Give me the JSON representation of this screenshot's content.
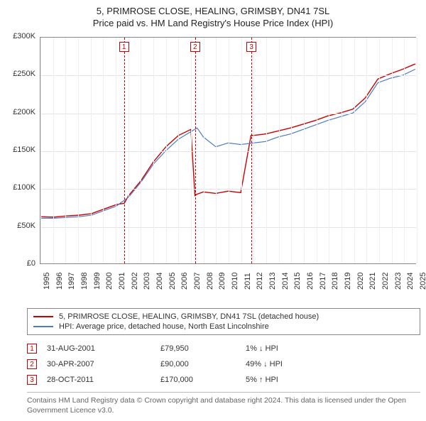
{
  "title_line1": "5, PRIMROSE CLOSE, HEALING, GRIMSBY, DN41 7SL",
  "title_line2": "Price paid vs. HM Land Registry's House Price Index (HPI)",
  "chart": {
    "type": "line",
    "background_color": "#ffffff",
    "grid_color": "#e4e4e4",
    "axis_color": "#888888",
    "label_fontsize": 11,
    "label_color": "#333333",
    "x_year_start": 1995,
    "x_year_end": 2025,
    "ylim": [
      0,
      300000
    ],
    "ytick_step": 50000,
    "y_prefix": "£",
    "y_suffix_k": "K",
    "years": [
      1995,
      1996,
      1997,
      1998,
      1999,
      2000,
      2001,
      2002,
      2003,
      2004,
      2005,
      2006,
      2007,
      2008,
      2009,
      2010,
      2011,
      2012,
      2013,
      2014,
      2015,
      2016,
      2017,
      2018,
      2019,
      2020,
      2021,
      2022,
      2023,
      2024,
      2025
    ],
    "series": [
      {
        "name": "price_paid",
        "label": "5, PRIMROSE CLOSE, HEALING, GRIMSBY, DN41 7SL (detached house)",
        "color": "#cc0000",
        "line_width": 1.4,
        "data": [
          [
            1995,
            62000
          ],
          [
            1996,
            61500
          ],
          [
            1997,
            63000
          ],
          [
            1998,
            64000
          ],
          [
            1999,
            66000
          ],
          [
            2000,
            72000
          ],
          [
            2001,
            78000
          ],
          [
            2001.66,
            79950
          ],
          [
            2002,
            90000
          ],
          [
            2003,
            110000
          ],
          [
            2004,
            135000
          ],
          [
            2005,
            155000
          ],
          [
            2006,
            170000
          ],
          [
            2007,
            178000
          ],
          [
            2007.33,
            90000
          ],
          [
            2007.5,
            92000
          ],
          [
            2008,
            95000
          ],
          [
            2009,
            93000
          ],
          [
            2010,
            96000
          ],
          [
            2011,
            94000
          ],
          [
            2011.82,
            170000
          ],
          [
            2012,
            170000
          ],
          [
            2013,
            172000
          ],
          [
            2014,
            176000
          ],
          [
            2015,
            180000
          ],
          [
            2016,
            185000
          ],
          [
            2017,
            190000
          ],
          [
            2018,
            196000
          ],
          [
            2019,
            200000
          ],
          [
            2020,
            205000
          ],
          [
            2021,
            220000
          ],
          [
            2022,
            245000
          ],
          [
            2023,
            252000
          ],
          [
            2024,
            258000
          ],
          [
            2025,
            265000
          ]
        ]
      },
      {
        "name": "hpi",
        "label": "HPI: Average price, detached house, North East Lincolnshire",
        "color": "#4a7bc4",
        "line_width": 1.2,
        "data": [
          [
            1995,
            60000
          ],
          [
            1996,
            60000
          ],
          [
            1997,
            61000
          ],
          [
            1998,
            62000
          ],
          [
            1999,
            64000
          ],
          [
            2000,
            70000
          ],
          [
            2001,
            76000
          ],
          [
            2002,
            88000
          ],
          [
            2003,
            108000
          ],
          [
            2004,
            132000
          ],
          [
            2005,
            150000
          ],
          [
            2006,
            165000
          ],
          [
            2007,
            175000
          ],
          [
            2007.5,
            180000
          ],
          [
            2008,
            168000
          ],
          [
            2009,
            155000
          ],
          [
            2010,
            160000
          ],
          [
            2011,
            158000
          ],
          [
            2012,
            160000
          ],
          [
            2013,
            162000
          ],
          [
            2014,
            168000
          ],
          [
            2015,
            172000
          ],
          [
            2016,
            178000
          ],
          [
            2017,
            184000
          ],
          [
            2018,
            190000
          ],
          [
            2019,
            195000
          ],
          [
            2020,
            200000
          ],
          [
            2021,
            215000
          ],
          [
            2022,
            240000
          ],
          [
            2023,
            246000
          ],
          [
            2024,
            250000
          ],
          [
            2025,
            258000
          ]
        ]
      }
    ],
    "markers": [
      {
        "id": "1",
        "year": 2001.66
      },
      {
        "id": "2",
        "year": 2007.33
      },
      {
        "id": "3",
        "year": 2011.82
      }
    ]
  },
  "legend": {
    "entries": [
      {
        "color": "#cc0000",
        "label_path": "chart.series.0.label"
      },
      {
        "color": "#4a7bc4",
        "label_path": "chart.series.1.label"
      }
    ]
  },
  "sales": [
    {
      "id": "1",
      "date": "31-AUG-2001",
      "price": "£79,950",
      "delta": "1% ↓ HPI"
    },
    {
      "id": "2",
      "date": "30-APR-2007",
      "price": "£90,000",
      "delta": "49% ↓ HPI"
    },
    {
      "id": "3",
      "date": "28-OCT-2011",
      "price": "£170,000",
      "delta": "5% ↑ HPI"
    }
  ],
  "footer": "Contains HM Land Registry data © Crown copyright and database right 2024. This data is licensed under the Open Government Licence v3.0."
}
